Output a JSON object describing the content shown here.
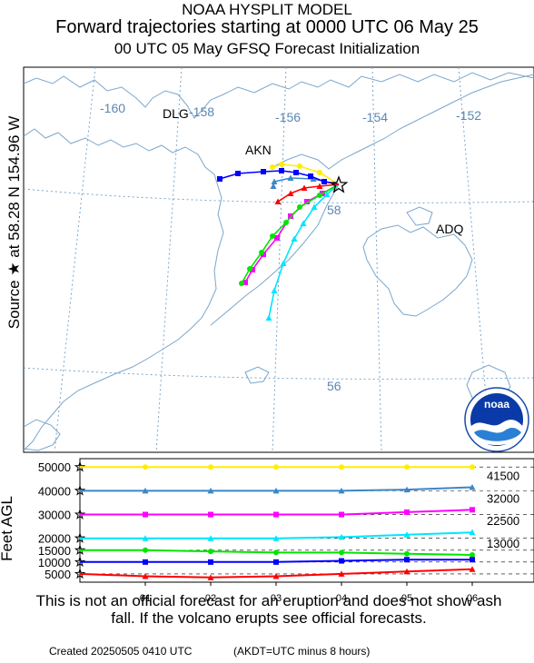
{
  "header": {
    "line1": "NOAA HYSPLIT MODEL",
    "line2": "Forward trajectories starting at 0000 UTC 06 May 25",
    "line3": "00 UTC 05 May    GFSQ  Forecast Initialization"
  },
  "map": {
    "source_label": "Source ★ at    58.28 N  154.96 W",
    "lon_labels": [
      "-160",
      "-158",
      "-156",
      "-154",
      "-152"
    ],
    "lat_labels": [
      "58",
      "56"
    ],
    "places": [
      "DLG",
      "AKN",
      "ADQ"
    ],
    "logo_text": "noaa",
    "colors": {
      "coast": "#7aa6cc",
      "grid": "#7aa6cc",
      "label": "#5a86b4"
    }
  },
  "chart_data": {
    "type": "line",
    "x": [
      "00",
      "01",
      "02",
      "03",
      "04",
      "05",
      "06"
    ],
    "xlabel": "",
    "ylabel": "Feet AGL",
    "ylim": [
      0,
      52000
    ],
    "y_ticks": [
      "50000",
      "40000",
      "30000",
      "20000",
      "15000",
      "10000",
      "5000"
    ],
    "series": [
      {
        "color": "#ffee00",
        "marker": "circle",
        "start": 50000,
        "values": [
          50000,
          50000,
          50000,
          50000,
          50000,
          50000,
          50000
        ],
        "end_label": "",
        "map_path": [
          [
            373,
            203
          ],
          [
            352,
            190
          ],
          [
            330,
            183
          ],
          [
            310,
            181
          ],
          [
            300,
            184
          ]
        ]
      },
      {
        "color": "#3a87c8",
        "marker": "triangle",
        "start": 40000,
        "values": [
          40000,
          40000,
          40000,
          40000,
          40000,
          40500,
          41500
        ],
        "end_label": "41500",
        "map_path": [
          [
            373,
            203
          ],
          [
            345,
            197
          ],
          [
            320,
            196
          ],
          [
            302,
            200
          ],
          [
            301,
            205
          ]
        ]
      },
      {
        "color": "#ff00ff",
        "marker": "square",
        "start": 30000,
        "values": [
          30000,
          30000,
          30000,
          30000,
          30000,
          31000,
          32000
        ],
        "end_label": "32000",
        "map_path": [
          [
            373,
            203
          ],
          [
            355,
            213
          ],
          [
            338,
            222
          ],
          [
            320,
            238
          ],
          [
            305,
            262
          ],
          [
            290,
            280
          ],
          [
            278,
            297
          ],
          [
            270,
            311
          ]
        ]
      },
      {
        "color": "#00e5ff",
        "marker": "triangle",
        "start": 20000,
        "values": [
          20000,
          20000,
          20000,
          20000,
          20500,
          21500,
          22500
        ],
        "end_label": "22500",
        "map_path": [
          [
            373,
            203
          ],
          [
            360,
            214
          ],
          [
            346,
            228
          ],
          [
            334,
            246
          ],
          [
            324,
            263
          ],
          [
            312,
            290
          ],
          [
            302,
            320
          ],
          [
            296,
            350
          ]
        ]
      },
      {
        "color": "#00e600",
        "marker": "circle",
        "start": 15000,
        "values": [
          15000,
          15000,
          14500,
          14000,
          14000,
          13500,
          13000
        ],
        "end_label": "13000",
        "map_path": [
          [
            373,
            203
          ],
          [
            352,
            215
          ],
          [
            330,
            228
          ],
          [
            315,
            245
          ],
          [
            300,
            260
          ],
          [
            288,
            278
          ],
          [
            275,
            296
          ],
          [
            266,
            312
          ]
        ]
      },
      {
        "color": "#0000ff",
        "marker": "square",
        "start": 10000,
        "values": [
          10000,
          10000,
          10000,
          10000,
          10500,
          11000,
          11000
        ],
        "end_label": "",
        "map_path": [
          [
            373,
            203
          ],
          [
            357,
            200
          ],
          [
            342,
            194
          ],
          [
            326,
            190
          ],
          [
            310,
            188
          ],
          [
            290,
            189
          ],
          [
            262,
            191
          ],
          [
            242,
            197
          ]
        ]
      },
      {
        "color": "#ff0000",
        "marker": "triangle",
        "start": 5000,
        "values": [
          5000,
          4000,
          3500,
          4000,
          5000,
          6000,
          7000
        ],
        "end_label": "",
        "map_path": [
          [
            373,
            203
          ],
          [
            352,
            205
          ],
          [
            335,
            207
          ],
          [
            320,
            213
          ],
          [
            306,
            222
          ]
        ]
      }
    ]
  },
  "disclaimer": "This is not an official forecast for an eruption and does not show ash fall. If the volcano erupts see official forecasts.",
  "footer": {
    "created": "Created 20250505 0410 UTC",
    "note": "(AKDT=UTC minus 8 hours)"
  }
}
